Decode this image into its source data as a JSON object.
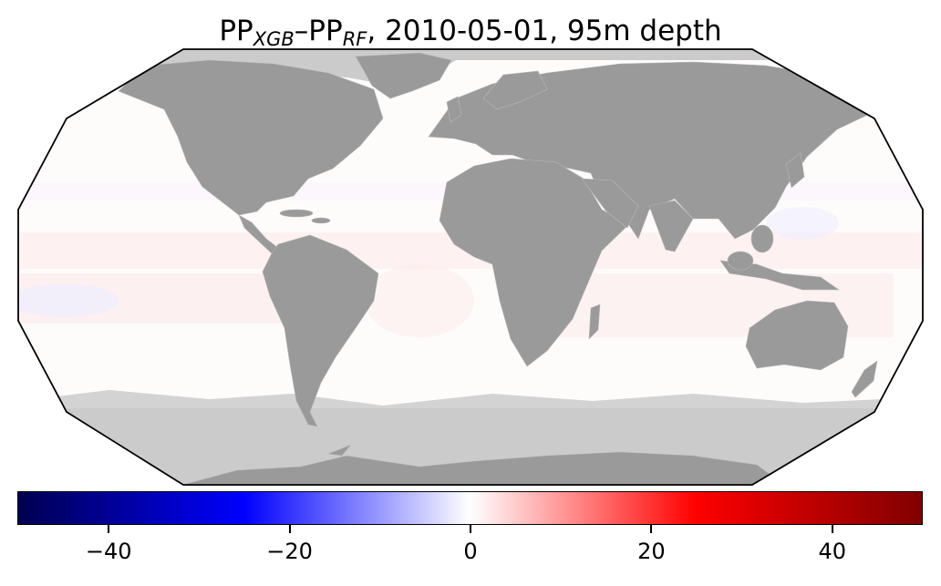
{
  "title": {
    "prefix": "PP",
    "sub1": "XGB",
    "dash": "–PP",
    "sub2": "RF",
    "suffix": ", 2010-05-01, 95m depth"
  },
  "map": {
    "projection": "Robinson",
    "ocean_color": "#fefbfb",
    "land_color": "#9a9a9a",
    "no_data_color": "#cbcbcb",
    "border_color": "#b8b8b8"
  },
  "colorbar": {
    "colormap": "seismic",
    "min": -50,
    "max": 50,
    "ticks": [
      -40,
      -20,
      0,
      20,
      40
    ],
    "tick_labels": [
      "−40",
      "−20",
      "0",
      "20",
      "40"
    ],
    "colors": [
      "#000050",
      "#0000ff",
      "#ffffff",
      "#ff0000",
      "#800000"
    ]
  }
}
